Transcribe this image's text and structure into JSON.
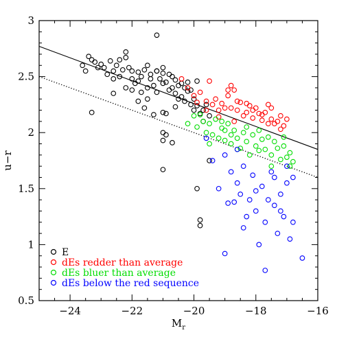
{
  "chart_data": {
    "type": "scatter",
    "title": "",
    "xlabel": "M",
    "xlabel_sub": "r",
    "ylabel": "u−r",
    "xlim": [
      -25,
      -16
    ],
    "ylim": [
      0.5,
      3.0
    ],
    "x_inverted": false,
    "xticks": [
      -24,
      -22,
      -20,
      -18,
      -16
    ],
    "xtick_labels": [
      "−24",
      "−22",
      "−20",
      "−18",
      "−16"
    ],
    "yticks": [
      0.5,
      1,
      1.5,
      2,
      2.5,
      3
    ],
    "ytick_labels": [
      "0.5",
      "1",
      "1.5",
      "2",
      "2.5",
      "3"
    ],
    "grid": false,
    "legend_position": "bottom-left",
    "lines": [
      {
        "style": "solid",
        "x": [
          -25,
          -16
        ],
        "y": [
          2.77,
          1.85
        ]
      },
      {
        "style": "dotted",
        "x": [
          -25,
          -16
        ],
        "y": [
          2.5,
          1.6
        ]
      }
    ],
    "series": [
      {
        "name": "E",
        "color": "#000000",
        "points": [
          [
            -23.6,
            2.6
          ],
          [
            -23.5,
            2.55
          ],
          [
            -23.4,
            2.68
          ],
          [
            -23.3,
            2.65
          ],
          [
            -23.2,
            2.63
          ],
          [
            -23.1,
            2.58
          ],
          [
            -23.0,
            2.61
          ],
          [
            -22.9,
            2.58
          ],
          [
            -22.8,
            2.52
          ],
          [
            -22.7,
            2.64
          ],
          [
            -22.6,
            2.55
          ],
          [
            -22.5,
            2.6
          ],
          [
            -22.4,
            2.65
          ],
          [
            -22.3,
            2.56
          ],
          [
            -22.2,
            2.72
          ],
          [
            -22.2,
            2.67
          ],
          [
            -22.1,
            2.58
          ],
          [
            -22.0,
            2.48
          ],
          [
            -22.0,
            2.55
          ],
          [
            -21.9,
            2.44
          ],
          [
            -21.8,
            2.54
          ],
          [
            -21.7,
            2.5
          ],
          [
            -21.6,
            2.56
          ],
          [
            -21.5,
            2.4
          ],
          [
            -21.4,
            2.52
          ],
          [
            -21.3,
            2.42
          ],
          [
            -21.2,
            2.87
          ],
          [
            -21.2,
            2.55
          ],
          [
            -21.1,
            2.48
          ],
          [
            -21.0,
            2.53
          ],
          [
            -21.0,
            2.44
          ],
          [
            -20.9,
            2.45
          ],
          [
            -20.8,
            2.52
          ],
          [
            -20.8,
            2.38
          ],
          [
            -20.7,
            2.4
          ],
          [
            -20.6,
            2.47
          ],
          [
            -20.6,
            2.35
          ],
          [
            -20.5,
            2.3
          ],
          [
            -20.5,
            2.42
          ],
          [
            -20.4,
            2.44
          ],
          [
            -20.3,
            2.28
          ],
          [
            -20.2,
            2.37
          ],
          [
            -20.1,
            2.25
          ],
          [
            -20.0,
            2.3
          ],
          [
            -20.0,
            2.2
          ],
          [
            -19.9,
            2.24
          ],
          [
            -19.8,
            2.17
          ],
          [
            -19.7,
            2.2
          ],
          [
            -19.7,
            2.1
          ],
          [
            -19.6,
            2.25
          ],
          [
            -19.5,
            2.15
          ],
          [
            -21.8,
            2.28
          ],
          [
            -21.6,
            2.22
          ],
          [
            -21.5,
            2.3
          ],
          [
            -21.3,
            2.16
          ],
          [
            -21.0,
            2.18
          ],
          [
            -20.9,
            2.17
          ],
          [
            -21.5,
            2.6
          ],
          [
            -21.2,
            2.55
          ],
          [
            -21.0,
            2.58
          ],
          [
            -20.7,
            2.5
          ],
          [
            -22.4,
            2.5
          ],
          [
            -22.2,
            2.4
          ],
          [
            -22.6,
            2.48
          ],
          [
            -21.8,
            2.46
          ],
          [
            -22.0,
            2.38
          ],
          [
            -21.4,
            2.48
          ],
          [
            -21.7,
            2.36
          ],
          [
            -20.4,
            2.32
          ],
          [
            -20.2,
            2.45
          ],
          [
            -20.1,
            2.38
          ],
          [
            -21.0,
            2.0
          ],
          [
            -20.9,
            1.98
          ],
          [
            -21.0,
            1.93
          ],
          [
            -20.7,
            1.91
          ],
          [
            -21.0,
            1.67
          ],
          [
            -19.5,
            1.75
          ],
          [
            -19.9,
            1.5
          ],
          [
            -19.8,
            1.22
          ],
          [
            -19.8,
            1.17
          ],
          [
            -23.3,
            2.18
          ],
          [
            -22.6,
            2.35
          ],
          [
            -20.6,
            2.23
          ],
          [
            -20.3,
            2.4
          ],
          [
            -21.2,
            2.36
          ],
          [
            -19.9,
            2.46
          ]
        ]
      },
      {
        "name": "dEs redder than average",
        "color": "#ff0000",
        "points": [
          [
            -20.4,
            2.48
          ],
          [
            -20.2,
            2.4
          ],
          [
            -20.0,
            2.33
          ],
          [
            -19.8,
            2.36
          ],
          [
            -19.6,
            2.28
          ],
          [
            -19.5,
            2.46
          ],
          [
            -19.4,
            2.25
          ],
          [
            -19.3,
            2.3
          ],
          [
            -19.2,
            2.2
          ],
          [
            -19.1,
            2.26
          ],
          [
            -19.0,
            2.22
          ],
          [
            -18.9,
            2.33
          ],
          [
            -18.8,
            2.42
          ],
          [
            -18.8,
            2.22
          ],
          [
            -18.7,
            2.38
          ],
          [
            -18.6,
            2.2
          ],
          [
            -18.5,
            2.27
          ],
          [
            -18.4,
            2.15
          ],
          [
            -18.3,
            2.18
          ],
          [
            -18.2,
            2.24
          ],
          [
            -18.1,
            2.13
          ],
          [
            -18.0,
            2.22
          ],
          [
            -17.9,
            2.17
          ],
          [
            -17.8,
            2.11
          ],
          [
            -17.7,
            2.18
          ],
          [
            -17.6,
            2.25
          ],
          [
            -17.5,
            2.12
          ],
          [
            -17.4,
            2.08
          ],
          [
            -17.3,
            2.1
          ],
          [
            -17.2,
            2.03
          ],
          [
            -17.1,
            2.06
          ],
          [
            -17.0,
            2.12
          ],
          [
            -18.9,
            2.38
          ],
          [
            -18.6,
            2.28
          ],
          [
            -18.3,
            2.26
          ],
          [
            -17.8,
            2.16
          ],
          [
            -17.5,
            2.22
          ],
          [
            -17.2,
            2.15
          ],
          [
            -19.6,
            2.2
          ],
          [
            -19.2,
            2.14
          ],
          [
            -18.7,
            2.1
          ],
          [
            -18.1,
            2.2
          ],
          [
            -17.6,
            2.08
          ],
          [
            -19.9,
            2.27
          ]
        ]
      },
      {
        "name": "dEs bluer than average",
        "color": "#00dd00",
        "points": [
          [
            -20.0,
            2.15
          ],
          [
            -19.9,
            2.05
          ],
          [
            -19.7,
            2.1
          ],
          [
            -19.6,
            2.0
          ],
          [
            -19.5,
            2.08
          ],
          [
            -19.4,
            1.98
          ],
          [
            -19.3,
            2.12
          ],
          [
            -19.2,
            1.95
          ],
          [
            -19.1,
            2.04
          ],
          [
            -19.0,
            1.93
          ],
          [
            -18.9,
            2.08
          ],
          [
            -18.8,
            1.9
          ],
          [
            -18.7,
            2.02
          ],
          [
            -18.6,
            1.95
          ],
          [
            -18.5,
            1.86
          ],
          [
            -18.4,
            2.0
          ],
          [
            -18.3,
            1.92
          ],
          [
            -18.2,
            1.8
          ],
          [
            -18.1,
            1.98
          ],
          [
            -18.0,
            1.88
          ],
          [
            -17.9,
            2.02
          ],
          [
            -17.8,
            1.94
          ],
          [
            -17.7,
            1.85
          ],
          [
            -17.6,
            1.96
          ],
          [
            -17.5,
            1.8
          ],
          [
            -17.4,
            1.92
          ],
          [
            -17.3,
            1.86
          ],
          [
            -17.2,
            1.76
          ],
          [
            -17.1,
            1.88
          ],
          [
            -17.0,
            1.78
          ],
          [
            -16.9,
            1.82
          ],
          [
            -16.8,
            1.74
          ],
          [
            -20.2,
            2.08
          ],
          [
            -19.8,
            2.16
          ],
          [
            -19.0,
            2.02
          ],
          [
            -18.6,
            1.85
          ],
          [
            -17.9,
            1.84
          ],
          [
            -17.5,
            1.7
          ],
          [
            -18.8,
            1.98
          ],
          [
            -19.5,
            1.9
          ],
          [
            -17.1,
            1.96
          ],
          [
            -16.9,
            1.7
          ],
          [
            -18.3,
            2.05
          ],
          [
            -19.1,
            2.1
          ]
        ]
      },
      {
        "name": "dEs below the red sequence",
        "color": "#0000ff",
        "points": [
          [
            -19.6,
            1.95
          ],
          [
            -19.4,
            1.75
          ],
          [
            -19.2,
            1.5
          ],
          [
            -19.0,
            1.8
          ],
          [
            -18.8,
            1.65
          ],
          [
            -18.7,
            1.38
          ],
          [
            -18.6,
            1.55
          ],
          [
            -18.5,
            1.45
          ],
          [
            -18.4,
            1.7
          ],
          [
            -18.3,
            1.25
          ],
          [
            -18.2,
            1.4
          ],
          [
            -18.1,
            1.62
          ],
          [
            -18.0,
            1.3
          ],
          [
            -17.9,
            1.0
          ],
          [
            -17.8,
            1.52
          ],
          [
            -17.7,
            1.2
          ],
          [
            -17.6,
            1.4
          ],
          [
            -17.5,
            1.65
          ],
          [
            -17.4,
            1.35
          ],
          [
            -17.3,
            1.1
          ],
          [
            -17.2,
            1.45
          ],
          [
            -17.1,
            1.25
          ],
          [
            -17.0,
            1.55
          ],
          [
            -16.9,
            1.05
          ],
          [
            -16.8,
            1.2
          ],
          [
            -16.5,
            0.88
          ],
          [
            -19.0,
            0.92
          ],
          [
            -17.7,
            0.77
          ],
          [
            -18.9,
            1.37
          ],
          [
            -18.4,
            1.15
          ],
          [
            -17.0,
            1.7
          ],
          [
            -16.8,
            1.6
          ],
          [
            -18.6,
            1.85
          ],
          [
            -17.4,
            1.6
          ],
          [
            -18.0,
            1.48
          ],
          [
            -17.2,
            1.3
          ]
        ]
      }
    ]
  }
}
